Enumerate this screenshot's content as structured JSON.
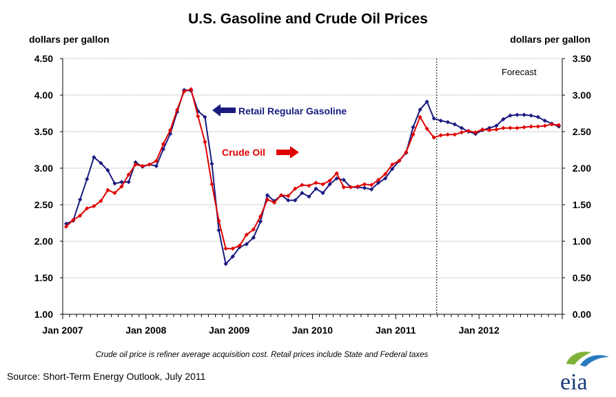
{
  "chart_data": {
    "type": "line",
    "title": "U.S. Gasoline and Crude Oil Prices",
    "left_axis": {
      "label": "dollars per gallon",
      "ylim": [
        1.0,
        4.5
      ],
      "ticks": [
        "1.00",
        "1.50",
        "2.00",
        "2.50",
        "3.00",
        "3.50",
        "4.00",
        "4.50"
      ],
      "tick_values": [
        1.0,
        1.5,
        2.0,
        2.5,
        3.0,
        3.5,
        4.0,
        4.5
      ]
    },
    "right_axis": {
      "label": "dollars per gallon",
      "ylim": [
        0.0,
        3.5
      ],
      "ticks": [
        "0.00",
        "0.50",
        "1.00",
        "1.50",
        "2.00",
        "2.50",
        "3.00",
        "3.50"
      ],
      "tick_values": [
        0.0,
        0.5,
        1.0,
        1.5,
        2.0,
        2.5,
        3.0,
        3.5
      ]
    },
    "x_axis": {
      "start": "Jan 2007",
      "months": 72,
      "tick_labels": [
        "Jan 2007",
        "Jan 2008",
        "Jan 2009",
        "Jan 2010",
        "Jan 2011",
        "Jan 2012"
      ],
      "tick_month_index": [
        0,
        12,
        24,
        36,
        48,
        60
      ]
    },
    "forecast": {
      "label": "Forecast",
      "start_month_index": 54
    },
    "grid": true,
    "series": [
      {
        "name": "Retail Regular Gasoline",
        "axis": "left",
        "color": "#1a1a80",
        "values": [
          2.24,
          2.28,
          2.57,
          2.85,
          3.15,
          3.07,
          2.97,
          2.79,
          2.81,
          2.81,
          3.08,
          3.02,
          3.05,
          3.03,
          3.26,
          3.47,
          3.77,
          4.07,
          4.06,
          3.78,
          3.7,
          3.06,
          2.15,
          1.69,
          1.79,
          1.92,
          1.96,
          2.05,
          2.27,
          2.63,
          2.55,
          2.63,
          2.56,
          2.56,
          2.66,
          2.61,
          2.72,
          2.66,
          2.78,
          2.86,
          2.84,
          2.74,
          2.74,
          2.73,
          2.71,
          2.8,
          2.86,
          2.99,
          3.1,
          3.21,
          3.56,
          3.8,
          3.91,
          3.68,
          3.65,
          3.63,
          3.6,
          3.55,
          3.5,
          3.47,
          3.52,
          3.55,
          3.58,
          3.67,
          3.72,
          3.73,
          3.73,
          3.72,
          3.7,
          3.65,
          3.61,
          3.57
        ]
      },
      {
        "name": "Crude Oil",
        "axis": "right",
        "color": "#e00000",
        "values": [
          1.2,
          1.29,
          1.35,
          1.45,
          1.48,
          1.55,
          1.7,
          1.66,
          1.75,
          1.91,
          2.05,
          2.03,
          2.05,
          2.1,
          2.33,
          2.52,
          2.8,
          3.05,
          3.08,
          2.71,
          2.36,
          1.78,
          1.28,
          0.9,
          0.9,
          0.94,
          1.09,
          1.16,
          1.34,
          1.57,
          1.53,
          1.63,
          1.62,
          1.72,
          1.77,
          1.76,
          1.8,
          1.78,
          1.83,
          1.93,
          1.74,
          1.74,
          1.75,
          1.78,
          1.77,
          1.84,
          1.92,
          2.05,
          2.1,
          2.22,
          2.46,
          2.7,
          2.54,
          2.42,
          2.45,
          2.46,
          2.46,
          2.49,
          2.51,
          2.49,
          2.53,
          2.52,
          2.53,
          2.55,
          2.55,
          2.55,
          2.56,
          2.57,
          2.57,
          2.58,
          2.6,
          2.59
        ]
      }
    ],
    "annotations": {
      "gasoline_label": "Retail Regular Gasoline",
      "crude_label": "Crude Oil"
    },
    "footnote": "Crude oil price is refiner average acquisition cost.  Retail prices include State and Federal taxes",
    "source": "Source: Short-Term Energy Outlook, July 2011",
    "logo_text": "eia"
  },
  "colors": {
    "gasoline": "#1a1a80",
    "crude": "#e00000",
    "logo_text": "#1a3d7a",
    "logo_leaf": "#7fb23a",
    "logo_arc": "#2a7bbd"
  }
}
